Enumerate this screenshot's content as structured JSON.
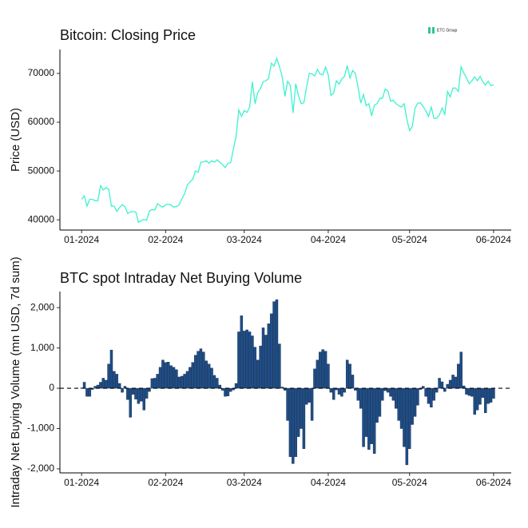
{
  "logo": "ETC Group",
  "chart_data": [
    {
      "type": "line",
      "title": "Bitcoin: Closing Price",
      "y_label": "Price (USD)",
      "color": "#3ef2cf",
      "grid": false,
      "categories": [
        "01-2024",
        null,
        null,
        null,
        null,
        null,
        null,
        null,
        null,
        null,
        null,
        null,
        null,
        null,
        null,
        null,
        null,
        null,
        null,
        null,
        null,
        null,
        null,
        null,
        null,
        null,
        null,
        null,
        null,
        null,
        null,
        "02-2024",
        null,
        null,
        null,
        null,
        null,
        null,
        null,
        null,
        null,
        null,
        null,
        null,
        null,
        null,
        null,
        null,
        null,
        null,
        null,
        null,
        null,
        null,
        null,
        null,
        null,
        null,
        null,
        null,
        "03-2024",
        null,
        null,
        null,
        null,
        null,
        null,
        null,
        null,
        null,
        null,
        null,
        null,
        null,
        null,
        null,
        null,
        null,
        null,
        null,
        null,
        null,
        null,
        null,
        null,
        null,
        null,
        null,
        null,
        null,
        null,
        "04-2024",
        null,
        null,
        null,
        null,
        null,
        null,
        null,
        null,
        null,
        null,
        null,
        null,
        null,
        null,
        null,
        null,
        null,
        null,
        null,
        null,
        null,
        null,
        null,
        null,
        null,
        null,
        null,
        null,
        null,
        "05-2024",
        null,
        null,
        null,
        null,
        null,
        null,
        null,
        null,
        null,
        null,
        null,
        null,
        null,
        null,
        null,
        null,
        null,
        null,
        null,
        null,
        null,
        null,
        null,
        null,
        null,
        null,
        null,
        null,
        null,
        null,
        "06-2024"
      ],
      "values": [
        44200,
        44900,
        42800,
        44200,
        44200,
        43900,
        43900,
        47000,
        46100,
        46600,
        46300,
        42800,
        42800,
        41700,
        42500,
        43100,
        42700,
        41300,
        41600,
        41700,
        41600,
        39500,
        39800,
        40100,
        39900,
        41800,
        42100,
        42000,
        43300,
        42900,
        42600,
        43100,
        43200,
        43000,
        42600,
        42700,
        43100,
        44300,
        45300,
        47100,
        47800,
        48300,
        50000,
        49700,
        51800,
        51900,
        52100,
        51600,
        52100,
        51800,
        52300,
        51800,
        51300,
        50700,
        51600,
        51700,
        54500,
        57100,
        62500,
        61200,
        62400,
        62000,
        63100,
        68300,
        63800,
        66100,
        66900,
        68300,
        68500,
        69000,
        72100,
        71500,
        73100,
        71400,
        69400,
        65300,
        68400,
        67600,
        61900,
        67900,
        65500,
        63800,
        64000,
        67200,
        70000,
        69900,
        69500,
        70800,
        69900,
        69700,
        71300,
        69700,
        65500,
        66000,
        68500,
        67800,
        68900,
        69400,
        71600,
        69100,
        70600,
        70000,
        67200,
        63900,
        65700,
        63400,
        63800,
        61300,
        63500,
        63800,
        64900,
        64900,
        66800,
        66400,
        64300,
        64500,
        63800,
        63400,
        63100,
        63800,
        60600,
        58300,
        59100,
        62900,
        63900,
        64000,
        63200,
        62300,
        61200,
        63100,
        60800,
        60800,
        61500,
        62900,
        61600,
        66300,
        65200,
        67000,
        67000,
        66300,
        71400,
        70100,
        69100,
        67900,
        68500,
        69300,
        68500,
        69400,
        68300,
        67600,
        68400,
        67500,
        67700
      ],
      "ylim": [
        37900,
        74900
      ],
      "yticks": [
        40000,
        50000,
        60000,
        70000
      ]
    },
    {
      "type": "bar",
      "title": "BTC spot Intraday Net Buying Volume",
      "y_label": "Intraday Net Buying Volume (mn USD, 7d sum)",
      "color": "#1f4e89",
      "grid": false,
      "zero_line": true,
      "categories": [
        "01-2024",
        null,
        null,
        null,
        null,
        null,
        null,
        null,
        null,
        null,
        null,
        null,
        null,
        null,
        null,
        null,
        null,
        null,
        null,
        null,
        null,
        null,
        null,
        null,
        null,
        null,
        null,
        null,
        null,
        null,
        null,
        "02-2024",
        null,
        null,
        null,
        null,
        null,
        null,
        null,
        null,
        null,
        null,
        null,
        null,
        null,
        null,
        null,
        null,
        null,
        null,
        null,
        null,
        null,
        null,
        null,
        null,
        null,
        null,
        null,
        null,
        "03-2024",
        null,
        null,
        null,
        null,
        null,
        null,
        null,
        null,
        null,
        null,
        null,
        null,
        null,
        null,
        null,
        null,
        null,
        null,
        null,
        null,
        null,
        null,
        null,
        null,
        null,
        null,
        null,
        null,
        null,
        null,
        "04-2024",
        null,
        null,
        null,
        null,
        null,
        null,
        null,
        null,
        null,
        null,
        null,
        null,
        null,
        null,
        null,
        null,
        null,
        null,
        null,
        null,
        null,
        null,
        null,
        null,
        null,
        null,
        null,
        null,
        null,
        "05-2024",
        null,
        null,
        null,
        null,
        null,
        null,
        null,
        null,
        null,
        null,
        null,
        null,
        null,
        null,
        null,
        null,
        null,
        null,
        null,
        null,
        null,
        null,
        null,
        null,
        null,
        null,
        null,
        null,
        null,
        null,
        "06-2024"
      ],
      "values": [
        10,
        150,
        -200,
        -200,
        -30,
        50,
        80,
        150,
        250,
        200,
        600,
        950,
        420,
        350,
        120,
        -100,
        50,
        -280,
        -720,
        -150,
        -270,
        -380,
        -320,
        -540,
        -250,
        -80,
        240,
        250,
        350,
        520,
        700,
        640,
        650,
        560,
        520,
        460,
        280,
        300,
        350,
        420,
        520,
        640,
        820,
        920,
        980,
        900,
        680,
        600,
        500,
        320,
        250,
        80,
        -50,
        -200,
        -190,
        -80,
        -40,
        120,
        1400,
        1800,
        1420,
        1450,
        1400,
        1300,
        1020,
        700,
        1050,
        1500,
        1320,
        1600,
        1850,
        2150,
        2200,
        1100,
        30,
        -50,
        -800,
        -1700,
        -1870,
        -1700,
        -1200,
        -1000,
        -1500,
        -400,
        -350,
        -800,
        480,
        700,
        900,
        960,
        920,
        600,
        -100,
        -280,
        -40,
        -150,
        -200,
        -100,
        700,
        600,
        330,
        -50,
        -300,
        -500,
        -1450,
        -1200,
        -1520,
        -1380,
        -1620,
        -850,
        -700,
        -300,
        -60,
        -100,
        -200,
        -300,
        -500,
        -800,
        -1000,
        -1450,
        -1900,
        -1500,
        -900,
        -700,
        -420,
        -30,
        50,
        -200,
        -380,
        -470,
        -300,
        -100,
        250,
        160,
        -80,
        100,
        200,
        330,
        280,
        600,
        900,
        60,
        -150,
        -180,
        -200,
        -650,
        -540,
        -400,
        -230,
        -610,
        -380,
        -350,
        -250
      ],
      "ylim": [
        -2100,
        2400
      ],
      "yticks": [
        {
          "value": -2000,
          "label": "-2,000"
        },
        {
          "value": -1000,
          "label": "-1,000"
        },
        0,
        {
          "value": 1000,
          "label": "1,000"
        },
        {
          "value": 2000,
          "label": "2,000"
        }
      ]
    }
  ]
}
